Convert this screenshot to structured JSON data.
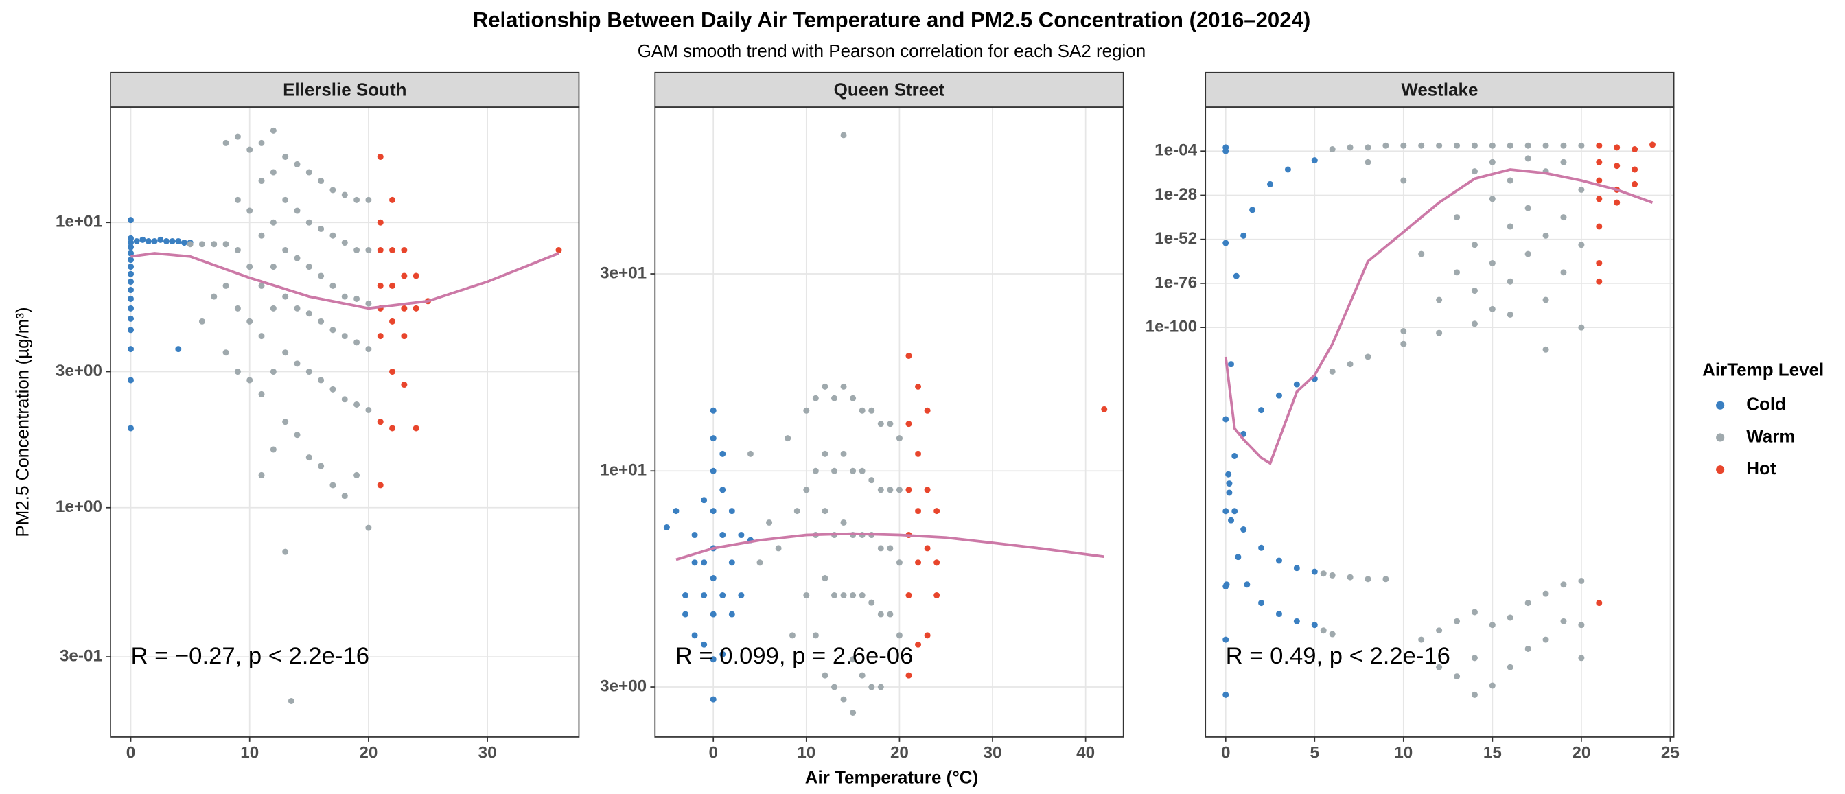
{
  "title": "Relationship Between Daily Air Temperature and  PM2.5  Concentration (2016–2024)",
  "subtitle": "GAM smooth trend with Pearson correlation for each SA2 region",
  "x_label": "Air Temperature (°C)",
  "y_label": "PM2.5 Concentration (µg/m³)",
  "legend": {
    "title": "AirTemp Level",
    "position": "right",
    "entries": [
      {
        "name": "Cold",
        "color": "#3a7fc1"
      },
      {
        "name": "Warm",
        "color": "#9fa9ad"
      },
      {
        "name": "Hot",
        "color": "#e8452c"
      }
    ]
  },
  "chart_data": [
    {
      "type": "scatter",
      "title": "Ellerslie South",
      "log_y": true,
      "grid": true,
      "xlim": [
        -1.7,
        37.7
      ],
      "ylim": [
        0.157,
        25.4
      ],
      "xticks": [
        0,
        10,
        20,
        30
      ],
      "yticks": [
        {
          "value": 0.3,
          "label": "3e-01"
        },
        {
          "value": 1,
          "label": "1e+00"
        },
        {
          "value": 3,
          "label": "3e+00"
        },
        {
          "value": 10,
          "label": "1e+01"
        }
      ],
      "series": [
        {
          "color": "#3a7fc1",
          "x": [
            0,
            0,
            0,
            0,
            0,
            0,
            0,
            0,
            0,
            0,
            0,
            0,
            0,
            0,
            0,
            0,
            0,
            0.5,
            1,
            1.5,
            2,
            2.5,
            3,
            3.5,
            4,
            4.5,
            5,
            4
          ],
          "values": [
            10.2,
            8.8,
            8.5,
            8.2,
            7.8,
            7.4,
            7,
            6.6,
            6.2,
            5.8,
            5.4,
            5,
            4.6,
            4.2,
            3.6,
            2.8,
            1.9,
            8.6,
            8.7,
            8.6,
            8.6,
            8.7,
            8.6,
            8.6,
            8.6,
            8.5,
            8.5,
            3.6
          ]
        },
        {
          "color": "#9fa9ad",
          "x": [
            5,
            6,
            6,
            7,
            7,
            8,
            8,
            8,
            8,
            9,
            9,
            9,
            9,
            9,
            10,
            10,
            10,
            10,
            10,
            11,
            11,
            11,
            11,
            11,
            11,
            11,
            12,
            12,
            12,
            12,
            12,
            12,
            12,
            13,
            13,
            13,
            13,
            13,
            13,
            13,
            14,
            14,
            14,
            14,
            14,
            14,
            15,
            15,
            15,
            15,
            15,
            15,
            16,
            16,
            16,
            16,
            16,
            16,
            17,
            17,
            17,
            17,
            17,
            17,
            18,
            18,
            18,
            18,
            18,
            18,
            19,
            19,
            19,
            19,
            19,
            19,
            20,
            20,
            20,
            20,
            20,
            20,
            13.5
          ],
          "values": [
            8.4,
            8.4,
            4.5,
            8.4,
            5.5,
            19,
            8.4,
            6,
            3.5,
            20,
            12,
            8,
            5,
            3,
            18,
            11,
            7,
            4.5,
            2.8,
            19,
            14,
            9,
            6,
            4,
            2.5,
            1.3,
            21,
            15,
            10,
            7,
            5,
            3,
            1.6,
            17,
            12,
            8,
            5.5,
            3.5,
            2,
            0.7,
            16,
            11,
            7.5,
            5,
            3.2,
            1.8,
            15,
            10,
            7,
            4.8,
            3,
            1.5,
            14,
            9.5,
            6.5,
            4.5,
            2.8,
            1.4,
            13,
            9,
            6,
            4.2,
            2.6,
            1.2,
            12.5,
            8.5,
            5.5,
            4,
            2.4,
            1.1,
            12,
            8,
            5.4,
            3.8,
            2.3,
            1.3,
            12,
            8,
            5.2,
            3.6,
            2.2,
            0.85,
            0.21
          ]
        },
        {
          "color": "#e8452c",
          "x": [
            21,
            21,
            21,
            21,
            21,
            21,
            21,
            21,
            22,
            22,
            22,
            22,
            22,
            22,
            23,
            23,
            23,
            23,
            23,
            24,
            24,
            24,
            25,
            36
          ],
          "values": [
            17,
            10,
            8,
            6,
            5,
            4,
            2,
            1.2,
            12,
            8,
            6,
            4.5,
            3,
            1.9,
            8,
            6.5,
            5,
            4,
            2.7,
            6.5,
            5,
            1.9,
            5.3,
            8
          ]
        }
      ],
      "smooth": {
        "color": "#cc79a7",
        "x": [
          0,
          2,
          5,
          10,
          15,
          20,
          25,
          30,
          36
        ],
        "values": [
          7.6,
          7.8,
          7.6,
          6.4,
          5.5,
          5.0,
          5.3,
          6.2,
          7.8
        ]
      },
      "annotation": "R = −0.27, p < 2.2e-16"
    },
    {
      "type": "scatter",
      "title": "Queen Street",
      "log_y": true,
      "grid": true,
      "xlim": [
        -6.26,
        44.06
      ],
      "ylim": [
        2.27,
        76
      ],
      "xticks": [
        0,
        10,
        20,
        30,
        40
      ],
      "yticks": [
        {
          "value": 3,
          "label": "3e+00"
        },
        {
          "value": 10,
          "label": "1e+01"
        },
        {
          "value": 30,
          "label": "3e+01"
        }
      ],
      "series": [
        {
          "color": "#3a7fc1",
          "x": [
            -4,
            -3,
            -3,
            -2,
            -2,
            -2,
            -1,
            -1,
            -1,
            -1,
            0,
            0,
            0,
            0,
            0,
            0,
            0,
            0,
            0,
            1,
            1,
            1,
            1,
            1,
            2,
            2,
            2,
            3,
            3,
            4,
            -5
          ],
          "values": [
            8,
            5,
            4.5,
            7,
            6,
            4,
            8.5,
            6,
            5,
            3.8,
            14,
            12,
            10,
            8,
            6.5,
            5.5,
            4.5,
            3.5,
            2.8,
            11,
            9,
            7,
            5,
            3.6,
            8,
            6,
            4.5,
            7,
            5,
            6.8,
            7.3
          ]
        },
        {
          "color": "#9fa9ad",
          "x": [
            5,
            6,
            7,
            8,
            9,
            10,
            10,
            10,
            11,
            11,
            11,
            11,
            12,
            12,
            12,
            12,
            12,
            13,
            13,
            13,
            13,
            13,
            14,
            14,
            14,
            14,
            14,
            14,
            15,
            15,
            15,
            15,
            15,
            15,
            16,
            16,
            16,
            16,
            16,
            17,
            17,
            17,
            17,
            17,
            18,
            18,
            18,
            18,
            18,
            19,
            19,
            19,
            19,
            20,
            20,
            20,
            20,
            4,
            8.5
          ],
          "values": [
            6,
            7.5,
            6.5,
            12,
            8,
            14,
            9,
            5,
            15,
            10,
            7,
            4,
            16,
            11,
            8,
            5.5,
            3.2,
            15,
            10,
            7,
            5,
            3,
            65,
            16,
            11,
            7.5,
            5,
            2.8,
            15,
            10,
            7,
            5,
            3.5,
            2.6,
            14,
            10,
            7,
            5,
            3.2,
            14,
            9.5,
            7,
            4.8,
            3,
            13,
            9,
            6.5,
            4.5,
            3,
            13,
            9,
            6.5,
            4.5,
            12,
            9,
            6,
            4,
            11,
            4
          ]
        },
        {
          "color": "#e8452c",
          "x": [
            21,
            21,
            21,
            21,
            21,
            21,
            22,
            22,
            22,
            22,
            22,
            23,
            23,
            23,
            23,
            24,
            24,
            24,
            42
          ],
          "values": [
            19,
            13,
            9,
            7,
            5,
            3.2,
            16,
            11,
            8,
            6,
            3.8,
            14,
            9,
            6.5,
            4,
            8,
            6,
            5,
            14.1
          ]
        }
      ],
      "smooth": {
        "color": "#cc79a7",
        "x": [
          -4,
          0,
          5,
          10,
          15,
          20,
          25,
          30,
          35,
          42
        ],
        "values": [
          6.1,
          6.5,
          6.8,
          7.0,
          7.05,
          7.0,
          6.9,
          6.7,
          6.5,
          6.2
        ]
      },
      "annotation": "R = 0.099, p = 2.6e-06"
    },
    {
      "type": "scatter",
      "title": "Westlake",
      "log_y": true,
      "grid": true,
      "xlim": [
        -1.14,
        25.2
      ],
      "ylim": [
        1e-323,
        1e+20
      ],
      "xticks": [
        0,
        5,
        10,
        15,
        20,
        25
      ],
      "yticks": [
        {
          "value": 1e-100,
          "label": "1e-100"
        },
        {
          "value": 1e-76,
          "label": "1e-76"
        },
        {
          "value": 1e-52,
          "label": "1e-52"
        },
        {
          "value": 1e-28,
          "label": "1e-28"
        },
        {
          "value": 0.0001,
          "label": "1e-04"
        }
      ],
      "series": [
        {
          "color": "#3a7fc1",
          "x": [
            0,
            0.05,
            0.15,
            0.3,
            0.6,
            1,
            1.5,
            2.5,
            3.5,
            5,
            0,
            0,
            0,
            0,
            0.2,
            0.5,
            1,
            2,
            3,
            4,
            5,
            0.2,
            0.5,
            1,
            2,
            3,
            4,
            5,
            0.3,
            0.7,
            1.2,
            2,
            3,
            4,
            5,
            0,
            0,
            0
          ],
          "values": [
            1e-300,
            1e-240,
            1e-180,
            1e-120,
            1e-72,
            1e-50,
            1e-36,
            1e-22,
            1e-14,
            1e-09,
            0.01,
            0.0001,
            1e-54,
            1e-241,
            1e-185,
            1e-170,
            1e-158,
            1e-145,
            1e-137,
            1e-131,
            1e-128,
            1e-190,
            1e-200,
            1e-210,
            1e-220,
            1e-227,
            1e-231,
            1e-233,
            1e-205,
            1e-225,
            1e-240,
            1e-250,
            1e-256,
            1e-260,
            1e-262,
            1e-150,
            1e-200,
            1e-270
          ]
        },
        {
          "color": "#9fa9ad",
          "x": [
            6,
            7,
            8,
            10,
            12,
            14,
            16,
            5.5,
            6,
            7,
            8,
            9,
            5.5,
            6,
            6,
            7,
            8,
            9,
            10,
            11,
            12,
            13,
            14,
            15,
            16,
            17,
            18,
            19,
            20,
            8,
            10,
            11,
            12,
            13,
            13,
            14,
            14,
            14,
            15,
            15,
            15,
            15,
            16,
            16,
            16,
            17,
            17,
            17,
            18,
            18,
            18,
            19,
            19,
            19,
            20,
            20,
            20,
            10,
            18,
            11,
            12,
            12,
            13,
            13,
            14,
            14,
            15,
            15,
            16,
            16,
            17,
            17,
            18,
            18,
            19,
            19,
            20,
            20,
            20,
            14
          ],
          "values": [
            1e-124,
            1e-120,
            1e-116,
            1e-109,
            1e-103,
            1e-98,
            1e-93,
            1e-234,
            1e-235,
            1e-236,
            1e-237,
            1e-237,
            1e-265,
            1e-267,
            0.001,
            0.01,
            0.01,
            0.1,
            0.1,
            0.1,
            0.1,
            0.1,
            0.1,
            0.1,
            0.1,
            0.1,
            0.1,
            0.1,
            0.1,
            1e-10,
            1e-20,
            1e-60,
            1e-85,
            1e-40,
            1e-70,
            1e-15,
            1e-55,
            1e-80,
            1e-10,
            1e-30,
            1e-65,
            1e-90,
            1e-20,
            1e-45,
            1e-75,
            1e-08,
            1e-35,
            1e-60,
            1e-15,
            1e-50,
            1e-85,
            1e-10,
            1e-40,
            1e-70,
            1e-25,
            1e-55,
            1e-100,
            1e-102,
            1e-112,
            1e-270,
            1e-265,
            1e-285,
            1e-260,
            1e-290,
            1e-255,
            1e-280,
            1e-262,
            1e-295,
            1e-258,
            1e-285,
            1e-250,
            1e-275,
            1e-245,
            1e-270,
            1e-240,
            1e-260,
            1e-238,
            1e-262,
            1e-280,
            1e-300
          ]
        },
        {
          "color": "#e8452c",
          "x": [
            21,
            21,
            21,
            21,
            21,
            21,
            21,
            21,
            22,
            22,
            22,
            22,
            23,
            23,
            23,
            24
          ],
          "values": [
            0.1,
            1e-10,
            1e-20,
            1e-30,
            1e-45,
            1e-65,
            1e-75,
            1e-250,
            0.01,
            1e-12,
            1e-25,
            1e-32,
            0.001,
            1e-14,
            1e-22,
            0.3
          ]
        }
      ],
      "smooth": {
        "color": "#cc79a7",
        "x": [
          0,
          0.5,
          1,
          2,
          2.5,
          3,
          4,
          5,
          6,
          8,
          10,
          12,
          14,
          16,
          18,
          20,
          22,
          24
        ],
        "values": [
          1e-116,
          1e-155,
          1e-161,
          1e-171,
          1e-174,
          1e-161,
          1e-135,
          1e-126,
          1e-109,
          1e-64,
          1e-48,
          1e-32,
          1e-19,
          1e-14,
          1e-16,
          1e-20,
          1e-25,
          1e-32
        ]
      },
      "annotation": "R = 0.49, p < 2.2e-16"
    }
  ]
}
